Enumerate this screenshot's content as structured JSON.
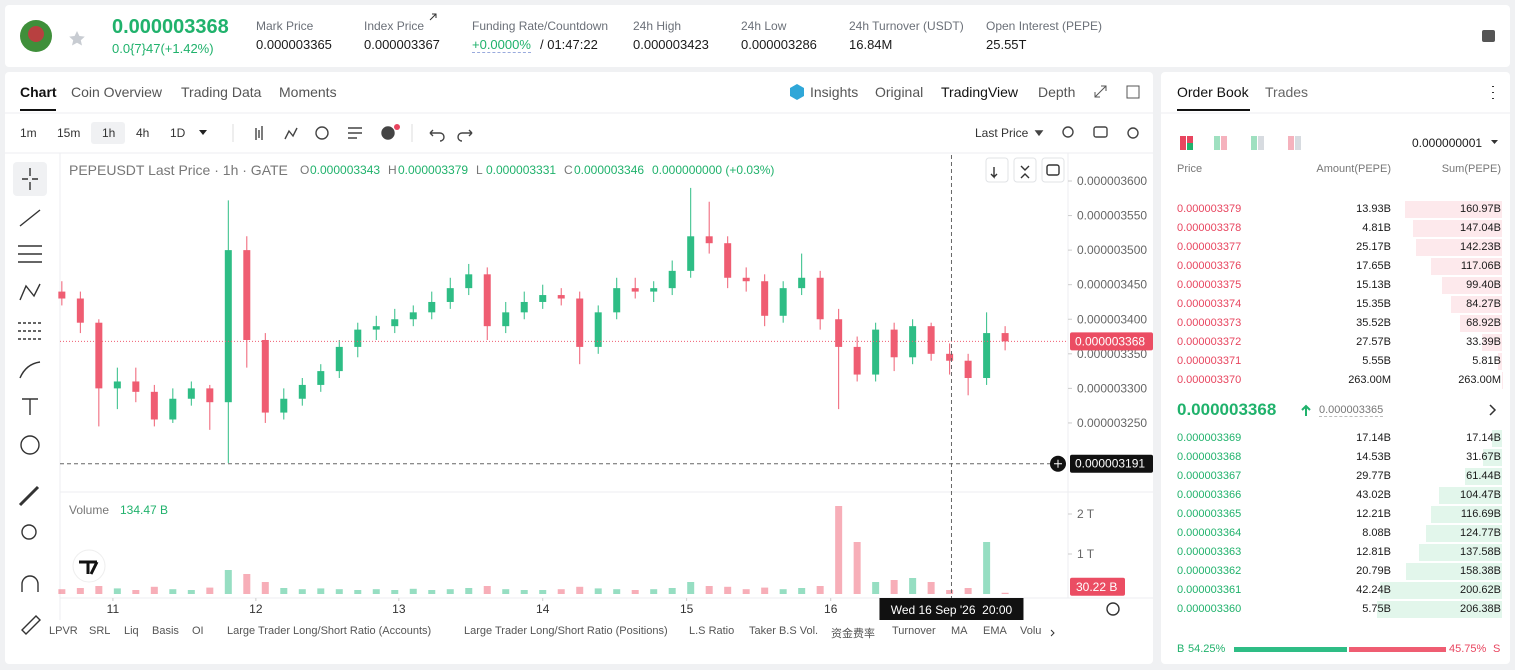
{
  "header": {
    "price": "0.000003368",
    "change": "0.0{7}47(+1.42%)",
    "stats": [
      {
        "label": "Mark Price",
        "value": "0.000003365"
      },
      {
        "label": "Index Price",
        "value": "0.000003367"
      },
      {
        "label": "Funding Rate/Countdown",
        "value": "+0.0000%",
        "extra": "/ 01:47:22"
      },
      {
        "label": "24h High",
        "value": "0.000003423"
      },
      {
        "label": "24h Low",
        "value": "0.000003286"
      },
      {
        "label": "24h Turnover (USDT)",
        "value": "16.84M"
      },
      {
        "label": "Open Interest (PEPE)",
        "value": "25.55T"
      }
    ]
  },
  "chart_tabs": [
    "Chart",
    "Coin Overview",
    "Trading Data",
    "Moments"
  ],
  "view_tabs": [
    "Insights",
    "Original",
    "TradingView",
    "Depth"
  ],
  "intervals": [
    "1m",
    "15m",
    "1h",
    "4h",
    "1D"
  ],
  "price_type": "Last Price",
  "legend": {
    "title": "PEPEUSDT Last Price · 1h · GATE",
    "ohlc": [
      {
        "key": "O",
        "value": "0.000003343"
      },
      {
        "key": "H",
        "value": "0.000003379"
      },
      {
        "key": "L",
        "value": "0.000003331"
      },
      {
        "key": "C",
        "value": "0.000003346"
      }
    ],
    "change": "0.000000000 (+0.03%)"
  },
  "chart": {
    "type": "candlestick",
    "xlim": [
      -0.1,
      54.4
    ],
    "ylim": [
      3.153e-06,
      3.6376e-06
    ],
    "yticks": [
      {
        "value": 3.25e-06,
        "label": "0.000003250"
      },
      {
        "value": 3.3e-06,
        "label": "0.000003300"
      },
      {
        "value": 3.35e-06,
        "label": "0.000003350"
      },
      {
        "value": 3.4e-06,
        "label": "0.000003400"
      },
      {
        "value": 3.45e-06,
        "label": "0.000003450"
      },
      {
        "value": 3.5e-06,
        "label": "0.000003500"
      },
      {
        "value": 3.55e-06,
        "label": "0.000003550"
      },
      {
        "value": 3.6e-06,
        "label": "0.000003600"
      }
    ],
    "xticks": [
      {
        "value": 2.76,
        "label": "11"
      },
      {
        "value": 10.49,
        "label": "12"
      },
      {
        "value": 18.22,
        "label": "13"
      },
      {
        "value": 26.0,
        "label": "14"
      },
      {
        "value": 33.78,
        "label": "15"
      },
      {
        "value": 41.57,
        "label": "16"
      }
    ],
    "candles": [
      [
        3.44e-06,
        3.455e-06,
        3.42e-06,
        3.43e-06
      ],
      [
        3.43e-06,
        3.44e-06,
        3.38e-06,
        3.395e-06
      ],
      [
        3.395e-06,
        3.4e-06,
        3.245e-06,
        3.3e-06
      ],
      [
        3.3e-06,
        3.33e-06,
        3.27e-06,
        3.31e-06
      ],
      [
        3.31e-06,
        3.33e-06,
        3.28e-06,
        3.295e-06
      ],
      [
        3.295e-06,
        3.305e-06,
        3.245e-06,
        3.255e-06
      ],
      [
        3.255e-06,
        3.3e-06,
        3.25e-06,
        3.285e-06
      ],
      [
        3.285e-06,
        3.31e-06,
        3.275e-06,
        3.3e-06
      ],
      [
        3.3e-06,
        3.305e-06,
        3.24e-06,
        3.28e-06
      ],
      [
        3.28e-06,
        3.572e-06,
        3.192e-06,
        3.5e-06
      ],
      [
        3.5e-06,
        3.52e-06,
        3.33e-06,
        3.37e-06
      ],
      [
        3.37e-06,
        3.38e-06,
        3.25e-06,
        3.265e-06
      ],
      [
        3.265e-06,
        3.3e-06,
        3.255e-06,
        3.285e-06
      ],
      [
        3.285e-06,
        3.315e-06,
        3.275e-06,
        3.305e-06
      ],
      [
        3.305e-06,
        3.335e-06,
        3.295e-06,
        3.325e-06
      ],
      [
        3.325e-06,
        3.37e-06,
        3.315e-06,
        3.36e-06
      ],
      [
        3.36e-06,
        3.395e-06,
        3.345e-06,
        3.385e-06
      ],
      [
        3.385e-06,
        3.405e-06,
        3.37e-06,
        3.39e-06
      ],
      [
        3.39e-06,
        3.415e-06,
        3.38e-06,
        3.4e-06
      ],
      [
        3.4e-06,
        3.42e-06,
        3.39e-06,
        3.41e-06
      ],
      [
        3.41e-06,
        3.44e-06,
        3.4e-06,
        3.425e-06
      ],
      [
        3.425e-06,
        3.46e-06,
        3.415e-06,
        3.445e-06
      ],
      [
        3.445e-06,
        3.48e-06,
        3.435e-06,
        3.465e-06
      ],
      [
        3.465e-06,
        3.475e-06,
        3.37e-06,
        3.39e-06
      ],
      [
        3.39e-06,
        3.425e-06,
        3.38e-06,
        3.41e-06
      ],
      [
        3.41e-06,
        3.44e-06,
        3.4e-06,
        3.425e-06
      ],
      [
        3.425e-06,
        3.45e-06,
        3.415e-06,
        3.435e-06
      ],
      [
        3.435e-06,
        3.445e-06,
        3.42e-06,
        3.43e-06
      ],
      [
        3.43e-06,
        3.44e-06,
        3.335e-06,
        3.36e-06
      ],
      [
        3.36e-06,
        3.42e-06,
        3.35e-06,
        3.41e-06
      ],
      [
        3.41e-06,
        3.46e-06,
        3.4e-06,
        3.445e-06
      ],
      [
        3.445e-06,
        3.46e-06,
        3.43e-06,
        3.44e-06
      ],
      [
        3.44e-06,
        3.455e-06,
        3.425e-06,
        3.445e-06
      ],
      [
        3.445e-06,
        3.485e-06,
        3.435e-06,
        3.47e-06
      ],
      [
        3.47e-06,
        3.59e-06,
        3.46e-06,
        3.52e-06
      ],
      [
        3.52e-06,
        3.57e-06,
        3.495e-06,
        3.51e-06
      ],
      [
        3.51e-06,
        3.52e-06,
        3.445e-06,
        3.46e-06
      ],
      [
        3.46e-06,
        3.475e-06,
        3.44e-06,
        3.455e-06
      ],
      [
        3.455e-06,
        3.465e-06,
        3.39e-06,
        3.405e-06
      ],
      [
        3.405e-06,
        3.455e-06,
        3.395e-06,
        3.445e-06
      ],
      [
        3.445e-06,
        3.495e-06,
        3.435e-06,
        3.46e-06
      ],
      [
        3.46e-06,
        3.47e-06,
        3.385e-06,
        3.4e-06
      ],
      [
        3.4e-06,
        3.415e-06,
        3.27e-06,
        3.36e-06
      ],
      [
        3.36e-06,
        3.375e-06,
        3.31e-06,
        3.32e-06
      ],
      [
        3.32e-06,
        3.395e-06,
        3.31e-06,
        3.385e-06
      ],
      [
        3.385e-06,
        3.395e-06,
        3.325e-06,
        3.345e-06
      ],
      [
        3.345e-06,
        3.4e-06,
        3.335e-06,
        3.39e-06
      ],
      [
        3.39e-06,
        3.395e-06,
        3.34e-06,
        3.35e-06
      ],
      [
        3.35e-06,
        3.365e-06,
        3.32e-06,
        3.34e-06
      ],
      [
        3.34e-06,
        3.35e-06,
        3.29e-06,
        3.315e-06
      ],
      [
        3.315e-06,
        3.41e-06,
        3.305e-06,
        3.38e-06
      ],
      [
        3.38e-06,
        3.39e-06,
        3.355e-06,
        3.368e-06
      ]
    ],
    "last_price": {
      "value": 3.368e-06,
      "label": "0.000003368"
    },
    "crosshair": {
      "x": 48.1,
      "price": {
        "value": 3.191e-06,
        "label": "0.000003191"
      },
      "time_label": "Wed 16 Sep '26  20:00"
    },
    "volume": {
      "label": "Volume",
      "total": "134.47 B",
      "ylim": [
        0,
        2.475
      ],
      "yticks": [
        {
          "value": 1,
          "label": "1 T"
        },
        {
          "value": 2,
          "label": "2 T"
        }
      ],
      "values": [
        0.12,
        0.15,
        0.2,
        0.14,
        0.1,
        0.18,
        0.12,
        0.1,
        0.16,
        0.6,
        0.5,
        0.3,
        0.15,
        0.12,
        0.14,
        0.12,
        0.1,
        0.12,
        0.1,
        0.13,
        0.1,
        0.12,
        0.15,
        0.2,
        0.12,
        0.1,
        0.1,
        0.12,
        0.18,
        0.14,
        0.12,
        0.1,
        0.12,
        0.15,
        0.3,
        0.2,
        0.18,
        0.12,
        0.16,
        0.12,
        0.15,
        0.2,
        2.2,
        1.3,
        0.3,
        0.35,
        0.4,
        0.3,
        0.1,
        0.15,
        1.3,
        0.03022
      ],
      "current_label": "30.22 B"
    }
  },
  "indicators": [
    "LPVR",
    "SRL",
    "Liq",
    "Basis",
    "OI",
    "Large Trader Long/Short Ratio (Accounts)",
    "Large Trader Long/Short Ratio (Positions)",
    "L.S Ratio",
    "Taker B.S Vol.",
    "资金费率",
    "Turnover",
    "MA",
    "EMA",
    "Volu"
  ],
  "order_book": {
    "tabs": [
      "Order Book",
      "Trades"
    ],
    "precision": "0.000000001",
    "columns": [
      "Price",
      "Amount(PEPE)",
      "Sum(PEPE)"
    ],
    "asks": [
      {
        "price": "0.000003379",
        "amount": "13.93B",
        "sum": 160.97,
        "sum_label": "160.97B"
      },
      {
        "price": "0.000003378",
        "amount": "4.81B",
        "sum": 147.04,
        "sum_label": "147.04B"
      },
      {
        "price": "0.000003377",
        "amount": "25.17B",
        "sum": 142.23,
        "sum_label": "142.23B"
      },
      {
        "price": "0.000003376",
        "amount": "17.65B",
        "sum": 117.06,
        "sum_label": "117.06B"
      },
      {
        "price": "0.000003375",
        "amount": "15.13B",
        "sum": 99.4,
        "sum_label": "99.40B"
      },
      {
        "price": "0.000003374",
        "amount": "15.35B",
        "sum": 84.27,
        "sum_label": "84.27B"
      },
      {
        "price": "0.000003373",
        "amount": "35.52B",
        "sum": 68.92,
        "sum_label": "68.92B"
      },
      {
        "price": "0.000003372",
        "amount": "27.57B",
        "sum": 33.39,
        "sum_label": "33.39B"
      },
      {
        "price": "0.000003371",
        "amount": "5.55B",
        "sum": 5.81,
        "sum_label": "5.81B"
      },
      {
        "price": "0.000003370",
        "amount": "263.00M",
        "sum": 0.263,
        "sum_label": "263.00M"
      }
    ],
    "last": "0.000003368",
    "mark": "0.000003365",
    "bids": [
      {
        "price": "0.000003369",
        "amount": "17.14B",
        "sum": 17.14,
        "sum_label": "17.14B"
      },
      {
        "price": "0.000003368",
        "amount": "14.53B",
        "sum": 31.67,
        "sum_label": "31.67B"
      },
      {
        "price": "0.000003367",
        "amount": "29.77B",
        "sum": 61.44,
        "sum_label": "61.44B"
      },
      {
        "price": "0.000003366",
        "amount": "43.02B",
        "sum": 104.47,
        "sum_label": "104.47B"
      },
      {
        "price": "0.000003365",
        "amount": "12.21B",
        "sum": 116.69,
        "sum_label": "116.69B"
      },
      {
        "price": "0.000003364",
        "amount": "8.08B",
        "sum": 124.77,
        "sum_label": "124.77B"
      },
      {
        "price": "0.000003363",
        "amount": "12.81B",
        "sum": 137.58,
        "sum_label": "137.58B"
      },
      {
        "price": "0.000003362",
        "amount": "20.79B",
        "sum": 158.38,
        "sum_label": "158.38B"
      },
      {
        "price": "0.000003361",
        "amount": "42.24B",
        "sum": 200.62,
        "sum_label": "200.62B"
      },
      {
        "price": "0.000003360",
        "amount": "5.75B",
        "sum": 206.38,
        "sum_label": "206.38B"
      }
    ],
    "ratio": {
      "buy_key": "B",
      "buy": {
        "value": 54.25,
        "label": "54.25%"
      },
      "sell": {
        "value": 45.75,
        "label": "45.75%"
      },
      "sell_key": "S"
    }
  }
}
